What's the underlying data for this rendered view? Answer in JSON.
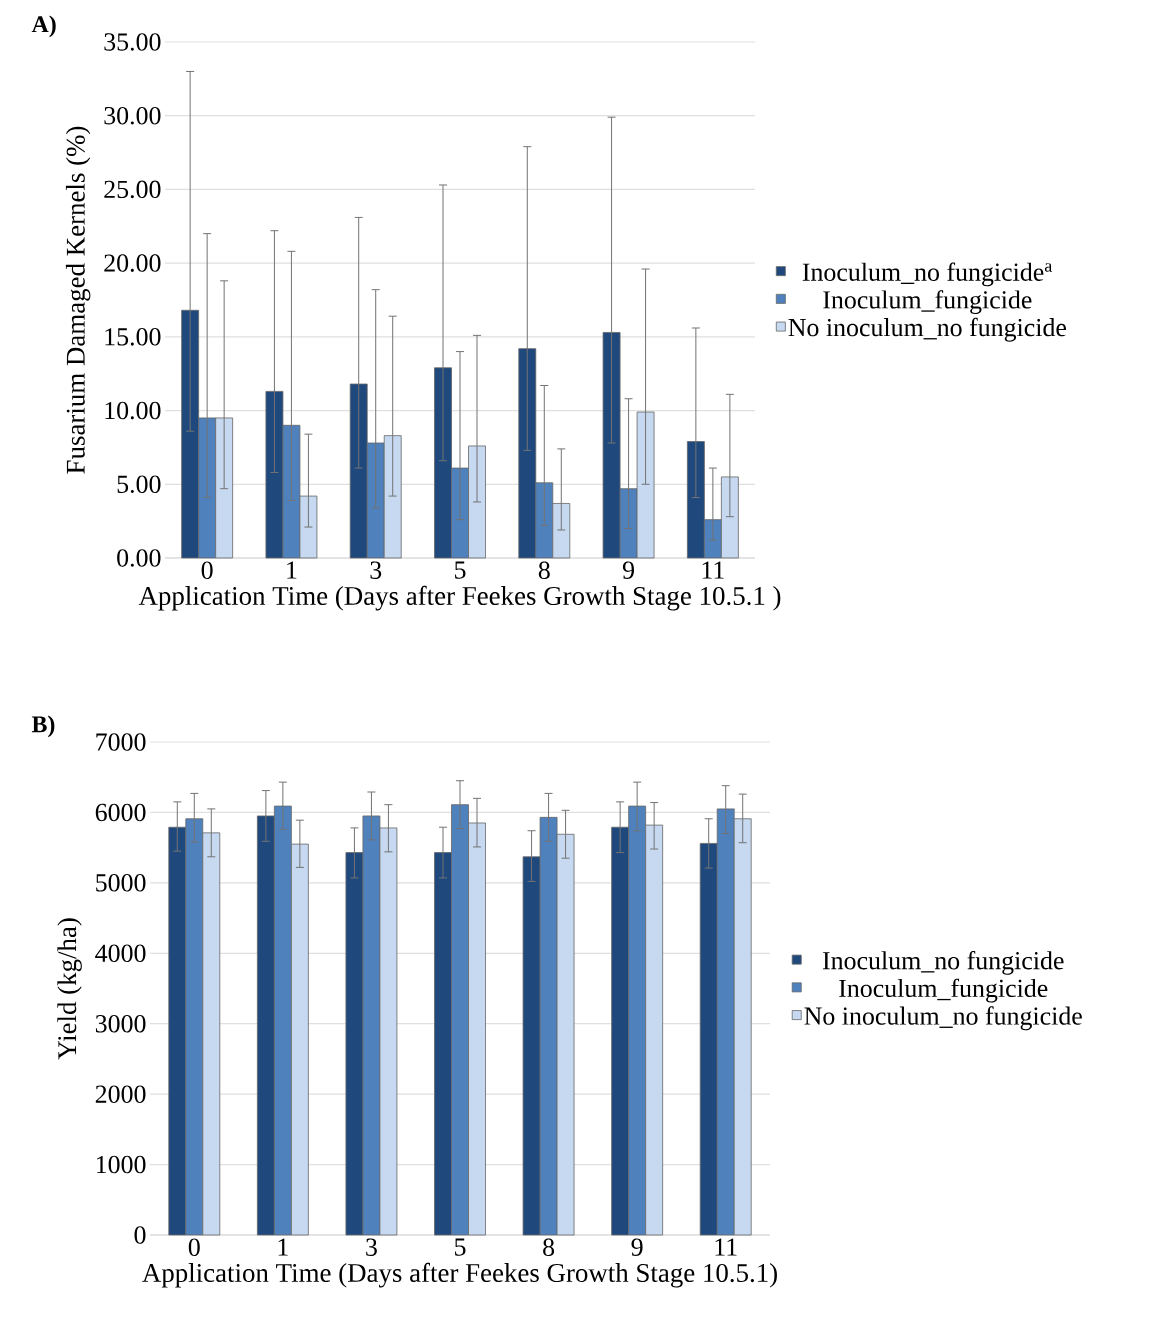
{
  "chart_data": [
    {
      "type": "bar",
      "title": "A)",
      "xlabel": "Application Time (Days after Feekes Growth Stage 10.5.1 )",
      "ylabel": "Fusarium Damaged Kernels (%)",
      "categories": [
        "0",
        "1",
        "3",
        "5",
        "8",
        "9",
        "11"
      ],
      "series": [
        {
          "name": "Inoculum_no fungicide$^{a}$",
          "color": "#1f497d",
          "values": [
            16.8,
            11.3,
            11.8,
            12.9,
            14.2,
            15.3,
            7.9
          ],
          "errors": [
            [
              8.6,
              33.0
            ],
            [
              5.8,
              22.2
            ],
            [
              6.1,
              23.1
            ],
            [
              6.6,
              25.3
            ],
            [
              7.3,
              27.9
            ],
            [
              7.8,
              29.9
            ],
            [
              4.1,
              15.6
            ]
          ]
        },
        {
          "name": "Inoculum_fungicide",
          "color": "#4f81bd",
          "values": [
            9.5,
            9.0,
            7.8,
            6.1,
            5.1,
            4.7,
            2.6
          ],
          "errors": [
            [
              4.1,
              22.0
            ],
            [
              3.9,
              20.8
            ],
            [
              3.4,
              18.2
            ],
            [
              2.6,
              14.0
            ],
            [
              2.2,
              11.7
            ],
            [
              2.0,
              10.8
            ],
            [
              1.2,
              6.1
            ]
          ]
        },
        {
          "name": "No inoculum_no fungicide",
          "color": "#c6d9f1",
          "values": [
            9.5,
            4.2,
            8.3,
            7.6,
            3.7,
            9.9,
            5.5
          ],
          "errors": [
            [
              4.7,
              18.8
            ],
            [
              2.1,
              8.4
            ],
            [
              4.2,
              16.4
            ],
            [
              3.8,
              15.1
            ],
            [
              1.9,
              7.4
            ],
            [
              5.0,
              19.6
            ],
            [
              2.8,
              11.1
            ]
          ]
        }
      ],
      "ylim": [
        0,
        35
      ],
      "yticks": [
        {
          "value": 0,
          "label": "0.00"
        },
        {
          "value": 5,
          "label": "5.00"
        },
        {
          "value": 10,
          "label": "10.00"
        },
        {
          "value": 15,
          "label": "15.00"
        },
        {
          "value": 20,
          "label": "20.00"
        },
        {
          "value": 25,
          "label": "25.00"
        },
        {
          "value": 30,
          "label": "30.00"
        },
        {
          "value": 35,
          "label": "35.00"
        }
      ],
      "grid": "y",
      "legend": "right"
    },
    {
      "type": "bar",
      "title": "B)",
      "xlabel": "Application Time (Days after Feekes Growth Stage 10.5.1)",
      "ylabel": "Yield (kg/ha)",
      "categories": [
        "0",
        "1",
        "3",
        "5",
        "8",
        "9",
        "11"
      ],
      "series": [
        {
          "name": "Inoculum_no fungicide",
          "color": "#1f497d",
          "values": [
            5790,
            5950,
            5430,
            5430,
            5370,
            5790,
            5560
          ],
          "errors": [
            [
              5450,
              6150
            ],
            [
              5590,
              6310
            ],
            [
              5070,
              5780
            ],
            [
              5070,
              5790
            ],
            [
              5020,
              5740
            ],
            [
              5430,
              6150
            ],
            [
              5210,
              5910
            ]
          ]
        },
        {
          "name": "Inoculum_fungicide",
          "color": "#4f81bd",
          "values": [
            5910,
            6090,
            5950,
            6110,
            5930,
            6090,
            6050
          ],
          "errors": [
            [
              5580,
              6270
            ],
            [
              5760,
              6430
            ],
            [
              5610,
              6290
            ],
            [
              5770,
              6450
            ],
            [
              5590,
              6270
            ],
            [
              5740,
              6430
            ],
            [
              5700,
              6380
            ]
          ]
        },
        {
          "name": "No inoculum_no fungicide",
          "color": "#c6d9f1",
          "values": [
            5710,
            5550,
            5780,
            5850,
            5690,
            5820,
            5910
          ],
          "errors": [
            [
              5370,
              6050
            ],
            [
              5220,
              5890
            ],
            [
              5440,
              6110
            ],
            [
              5510,
              6200
            ],
            [
              5350,
              6030
            ],
            [
              5480,
              6140
            ],
            [
              5570,
              6260
            ]
          ]
        }
      ],
      "ylim": [
        0,
        7000
      ],
      "yticks": [
        0,
        1000,
        2000,
        3000,
        4000,
        5000,
        6000,
        7000
      ],
      "grid": "y",
      "legend": "right"
    }
  ]
}
